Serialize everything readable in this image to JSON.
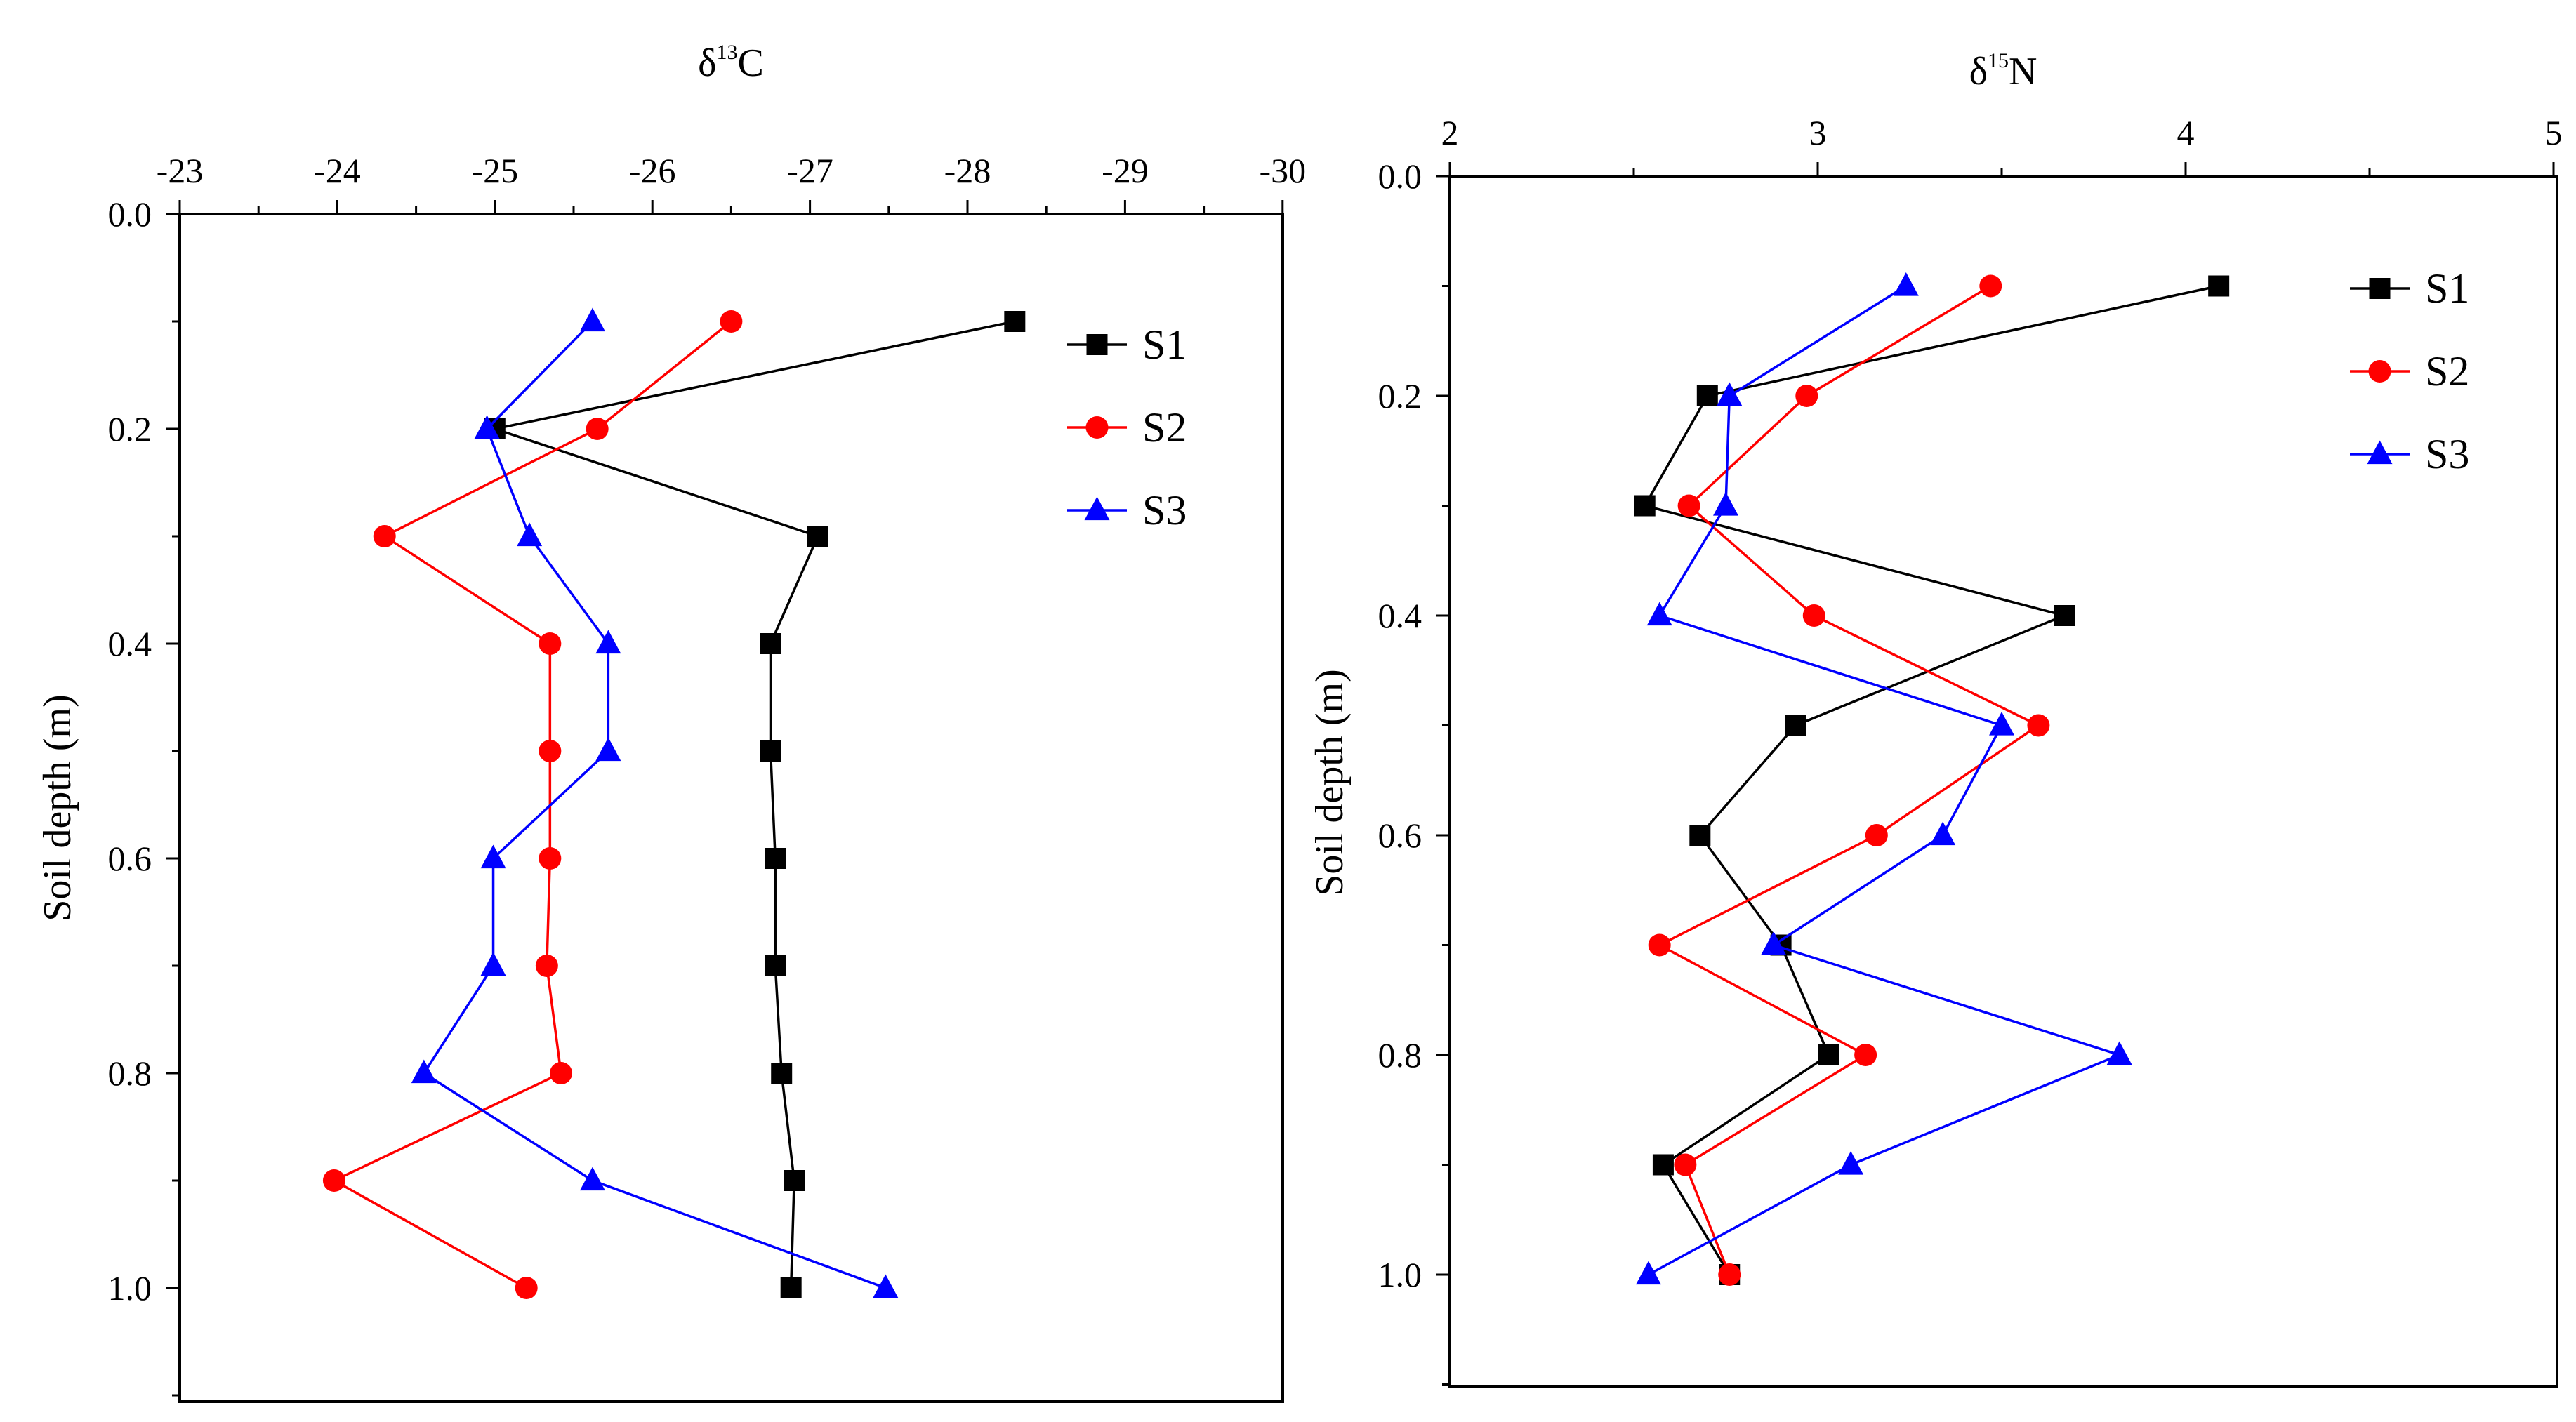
{
  "chart_data": [
    {
      "type": "line",
      "title": "",
      "xlabel": {
        "prefix": "δ",
        "sup": "13",
        "suffix": "C"
      },
      "ylabel": "Soil depth (m)",
      "x_axis_position": "top",
      "x_reversed": true,
      "xlim": [
        -23,
        -30
      ],
      "ylim": [
        0.0,
        1.1
      ],
      "xticks": [
        -23,
        -24,
        -25,
        -26,
        -27,
        -28,
        -29,
        -30
      ],
      "xtick_labels": [
        "-23",
        "-24",
        "-25",
        "-26",
        "-27",
        "-28",
        "-29",
        "-30"
      ],
      "yticks": [
        0.0,
        0.2,
        0.4,
        0.6,
        0.8,
        1.0
      ],
      "ytick_labels": [
        "0.0",
        "0.2",
        "0.4",
        "0.6",
        "0.8",
        "1.0"
      ],
      "legend": "top-right",
      "series": [
        {
          "name": "S1",
          "color": "#000000",
          "marker": "square",
          "depths": [
            0.1,
            0.2,
            0.3,
            0.4,
            0.5,
            0.6,
            0.7,
            0.8,
            0.9,
            1.0
          ],
          "values": [
            -28.3,
            -25.0,
            -27.05,
            -26.75,
            -26.75,
            -26.78,
            -26.78,
            -26.82,
            -26.9,
            -26.88
          ]
        },
        {
          "name": "S2",
          "color": "#ff0000",
          "marker": "circle",
          "depths": [
            0.1,
            0.2,
            0.3,
            0.4,
            0.5,
            0.6,
            0.7,
            0.8,
            0.9,
            1.0
          ],
          "values": [
            -26.5,
            -25.65,
            -24.3,
            -25.35,
            -25.35,
            -25.35,
            -25.33,
            -25.42,
            -23.98,
            -25.2
          ]
        },
        {
          "name": "S3",
          "color": "#0000ff",
          "marker": "triangle",
          "depths": [
            0.1,
            0.2,
            0.3,
            0.4,
            0.5,
            0.6,
            0.7,
            0.8,
            0.9,
            1.0
          ],
          "values": [
            -25.62,
            -24.95,
            -25.22,
            -25.72,
            -25.72,
            -24.99,
            -24.99,
            -24.55,
            -25.62,
            -27.48
          ]
        }
      ]
    },
    {
      "type": "line",
      "title": "",
      "xlabel": {
        "prefix": "δ",
        "sup": "15",
        "suffix": "N"
      },
      "ylabel": "Soil depth (m)",
      "x_axis_position": "top",
      "x_reversed": false,
      "xlim": [
        2,
        5
      ],
      "ylim": [
        0.0,
        1.1
      ],
      "xticks": [
        2,
        3,
        4,
        5
      ],
      "xtick_labels": [
        "2",
        "3",
        "4",
        "5"
      ],
      "yticks": [
        0.0,
        0.2,
        0.4,
        0.6,
        0.8,
        1.0
      ],
      "ytick_labels": [
        "0.0",
        "0.2",
        "0.4",
        "0.6",
        "0.8",
        "1.0"
      ],
      "legend": "top-right",
      "series": [
        {
          "name": "S1",
          "color": "#000000",
          "marker": "square",
          "depths": [
            0.1,
            0.2,
            0.3,
            0.4,
            0.5,
            0.6,
            0.7,
            0.8,
            0.9,
            1.0
          ],
          "values": [
            4.09,
            2.7,
            2.53,
            3.67,
            2.94,
            2.68,
            2.9,
            3.03,
            2.58,
            2.76
          ]
        },
        {
          "name": "S2",
          "color": "#ff0000",
          "marker": "circle",
          "depths": [
            0.1,
            0.2,
            0.3,
            0.4,
            0.5,
            0.6,
            0.7,
            0.8,
            0.9,
            1.0
          ],
          "values": [
            3.47,
            2.97,
            2.65,
            2.99,
            3.6,
            3.16,
            2.57,
            3.13,
            2.64,
            2.76
          ]
        },
        {
          "name": "S3",
          "color": "#0000ff",
          "marker": "triangle",
          "depths": [
            0.1,
            0.2,
            0.3,
            0.4,
            0.5,
            0.6,
            0.7,
            0.8,
            0.9,
            1.0
          ],
          "values": [
            3.24,
            2.76,
            2.75,
            2.57,
            3.5,
            3.34,
            2.88,
            3.82,
            3.09,
            2.54
          ]
        }
      ]
    }
  ]
}
